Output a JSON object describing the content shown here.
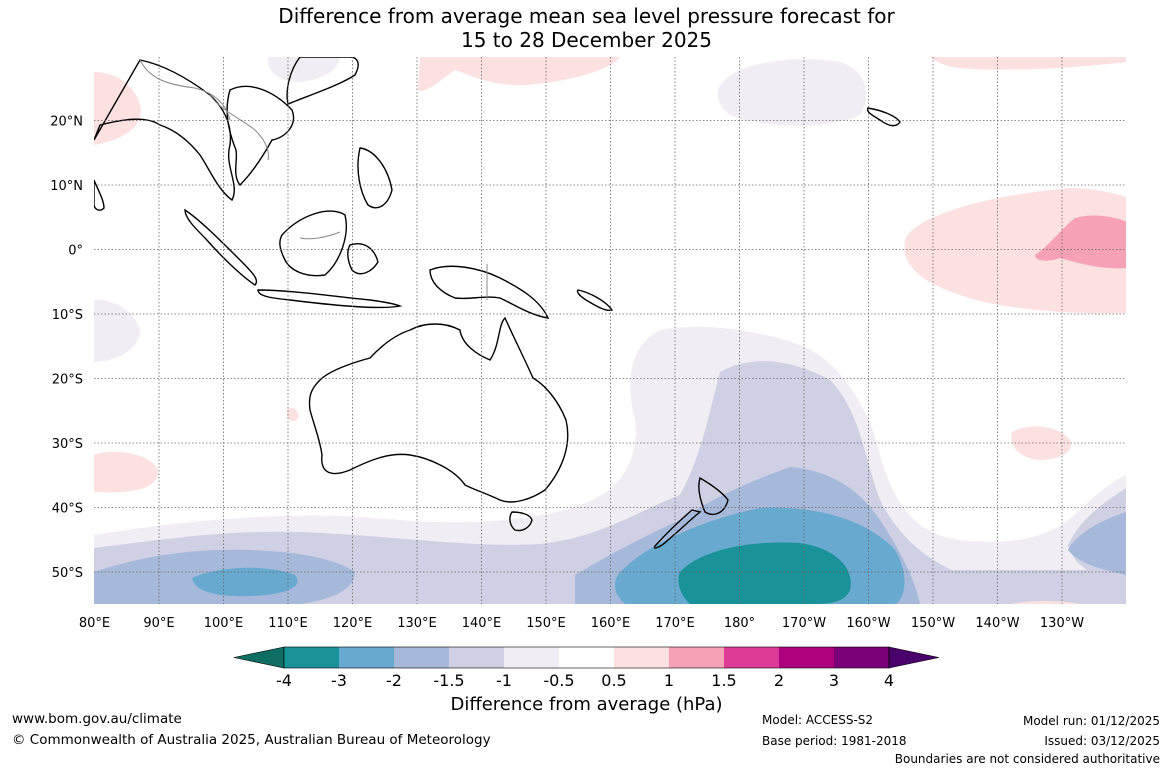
{
  "title_line1": "Difference from average mean sea level pressure forecast for",
  "title_line2": "15 to 28 December 2025",
  "lat_labels": [
    "20°N",
    "10°N",
    "0°",
    "10°S",
    "20°S",
    "30°S",
    "40°S",
    "50°S"
  ],
  "lat_values": [
    20,
    10,
    0,
    -10,
    -20,
    -30,
    -40,
    -50
  ],
  "lon_labels": [
    "80°E",
    "90°E",
    "100°E",
    "110°E",
    "120°E",
    "130°E",
    "140°E",
    "150°E",
    "160°E",
    "170°E",
    "180°",
    "170°W",
    "160°W",
    "150°W",
    "140°W",
    "130°W"
  ],
  "lon_values": [
    80,
    90,
    100,
    110,
    120,
    130,
    140,
    150,
    160,
    170,
    180,
    190,
    200,
    210,
    220,
    230
  ],
  "colorbar": {
    "ticks": [
      "-4",
      "-3",
      "-2",
      "-1.5",
      "-1",
      "-0.5",
      "0.5",
      "1",
      "1.5",
      "2",
      "3",
      "4"
    ],
    "colors": [
      "#1a9299",
      "#67a9cf",
      "#a6b9da",
      "#cfd0e3",
      "#f1edf4",
      "#ffffff",
      "#fde0e0",
      "#f7a1b7",
      "#dc3c96",
      "#ae017e",
      "#7a0177"
    ],
    "under_color": "#0e6e63",
    "over_color": "#49006a",
    "label": "Difference from average (hPa)"
  },
  "footer": {
    "website": "www.bom.gov.au/climate",
    "copyright": "© Commonwealth of Australia 2025, Australian Bureau of Meteorology",
    "model": "Model: ACCESS-S2",
    "base_period": "Base period: 1981-2018",
    "model_run": "Model run: 01/12/2025",
    "issued": "Issued: 03/12/2025",
    "disclaimer": "Boundaries are not considered authoritative"
  },
  "colors": {
    "land_outline": "#000000",
    "internal_border": "#888888",
    "gridline": "#666666"
  }
}
